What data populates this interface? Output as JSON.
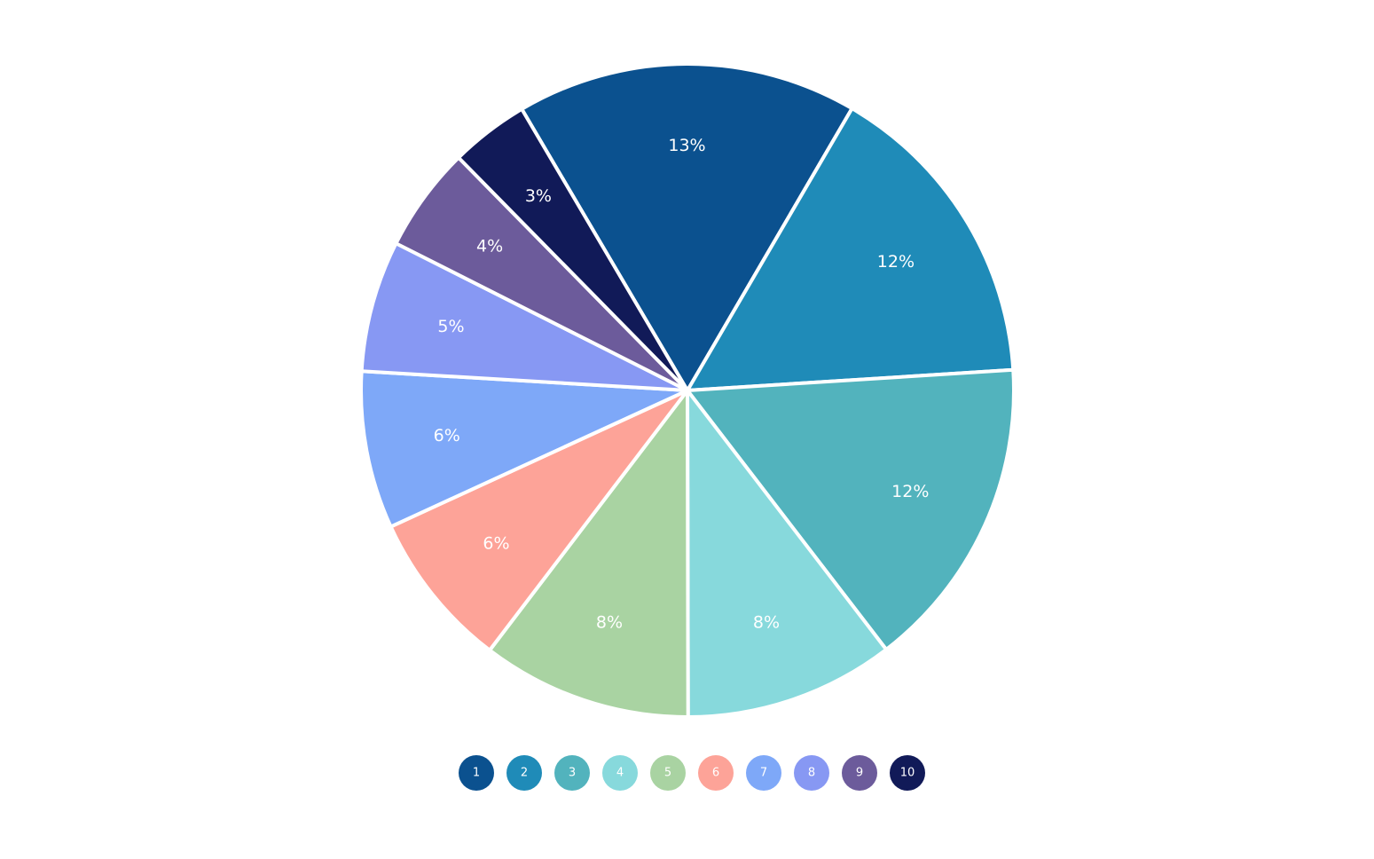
{
  "chart_data": {
    "type": "pie",
    "slices": [
      {
        "category": "1",
        "label": "13%",
        "value": 13,
        "color": "#0b518f"
      },
      {
        "category": "2",
        "label": "12%",
        "value": 12,
        "color": "#1f8bb8"
      },
      {
        "category": "3",
        "label": "12%",
        "value": 12,
        "color": "#52b3bd"
      },
      {
        "category": "4",
        "label": "8%",
        "value": 8,
        "color": "#87d9dc"
      },
      {
        "category": "5",
        "label": "8%",
        "value": 8,
        "color": "#a9d3a2"
      },
      {
        "category": "6",
        "label": "6%",
        "value": 6,
        "color": "#fda398"
      },
      {
        "category": "7",
        "label": "6%",
        "value": 6,
        "color": "#7ea8f8"
      },
      {
        "category": "8",
        "label": "5%",
        "value": 5,
        "color": "#8798f3"
      },
      {
        "category": "9",
        "label": "4%",
        "value": 4,
        "color": "#6c5b9b"
      },
      {
        "category": "10",
        "label": "3%",
        "value": 3,
        "color": "#111a58"
      }
    ],
    "legend": {
      "placement": "bottom",
      "items": [
        "1",
        "2",
        "3",
        "4",
        "5",
        "6",
        "7",
        "8",
        "9",
        "10"
      ]
    }
  }
}
